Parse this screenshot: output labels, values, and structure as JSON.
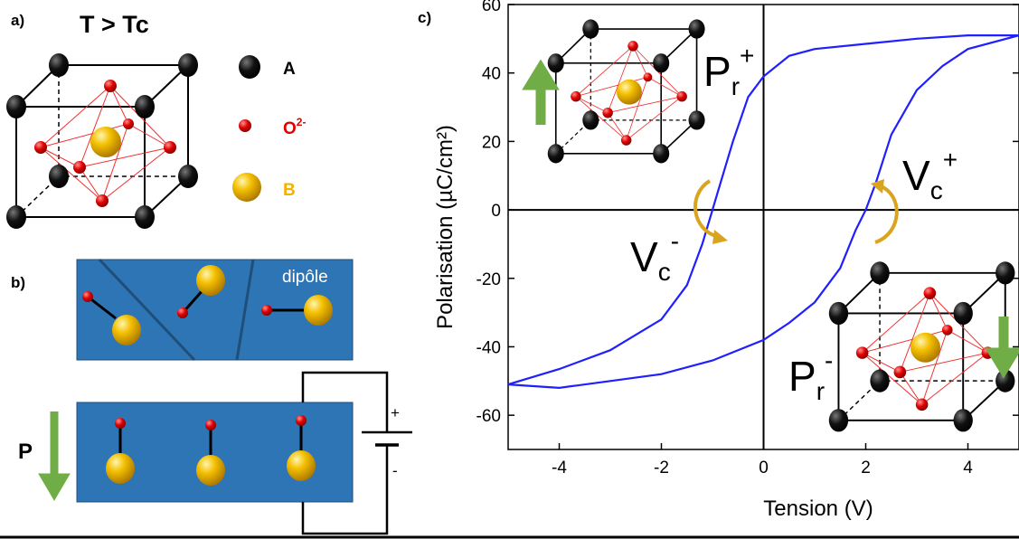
{
  "panel_a": {
    "label": "a)",
    "title": "T > Tc",
    "legend": [
      {
        "label": "A"
      },
      {
        "label": "O",
        "sup": "2-"
      },
      {
        "label": "B"
      }
    ]
  },
  "panel_b": {
    "label": "b)",
    "dipole_label": "dipôle",
    "polarization_label": "P",
    "battery_plus": "+",
    "battery_minus": "-"
  },
  "chart_data": {
    "type": "line",
    "panel_label": "c)",
    "x_label": "Tension (V)",
    "y_label": "Polarisation (µC/cm²)",
    "xlim": [
      -5,
      5
    ],
    "ylim": [
      -70,
      60
    ],
    "xticks": [
      -4,
      -2,
      0,
      2,
      4
    ],
    "yticks": [
      -60,
      -40,
      -20,
      0,
      20,
      40,
      60
    ],
    "color": "#1f1fff",
    "x": [
      5,
      4,
      3,
      2,
      1,
      0.5,
      0,
      -0.3,
      -0.6,
      -0.9,
      -1,
      -1.2,
      -1.5,
      -2,
      -3,
      -4,
      -5,
      -4,
      -3,
      -2,
      -1,
      0,
      0.5,
      1,
      1.5,
      1.8,
      2,
      2.2,
      2.5,
      3,
      3.5,
      4,
      5
    ],
    "values": [
      51,
      51,
      50,
      48.5,
      47,
      45,
      39,
      33,
      20,
      5,
      0,
      -10,
      -22,
      -32,
      -41,
      -46.5,
      -51,
      -52,
      -50,
      -48,
      -44,
      -38,
      -33,
      -27,
      -17,
      -6,
      0,
      8,
      22,
      35,
      42,
      47,
      51
    ],
    "annotations": [
      {
        "text": "P",
        "sub": "r",
        "sup": "+"
      },
      {
        "text": "V",
        "sub": "c",
        "sup": "+"
      },
      {
        "text": "V",
        "sub": "c",
        "sup": "-"
      },
      {
        "text": "P",
        "sub": "r",
        "sup": "-"
      }
    ]
  }
}
